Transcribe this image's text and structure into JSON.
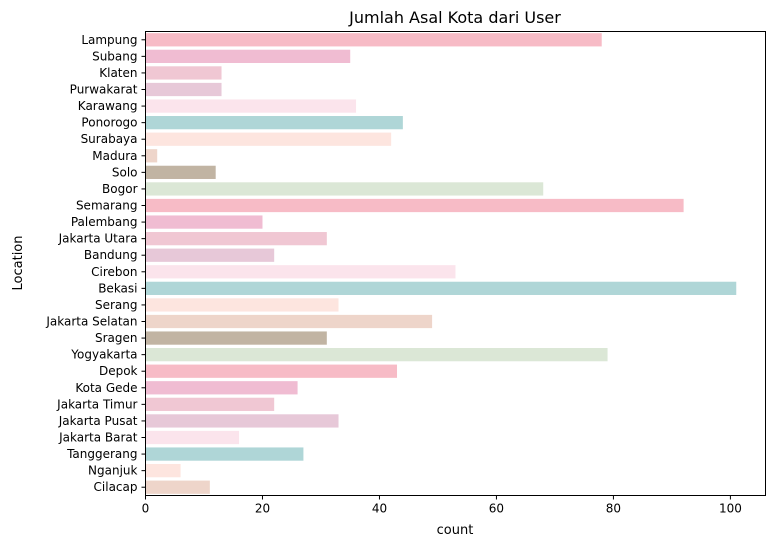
{
  "chart_data": {
    "type": "bar",
    "orientation": "horizontal",
    "title": "Jumlah Asal Kota dari User",
    "xlabel": "count",
    "ylabel": "Location",
    "xlim": [
      0,
      106
    ],
    "xticks": [
      0,
      20,
      40,
      60,
      80,
      100
    ],
    "grid": false,
    "palette": [
      "#f7bbc6",
      "#f0bcd2",
      "#f0c7d3",
      "#e7c8d8",
      "#fbe4ec",
      "#afd6d7",
      "#fde5df",
      "#eed5ca",
      "#c1b4a3",
      "#dbe7d6"
    ],
    "categories": [
      "Lampung",
      "Subang",
      "Klaten",
      "Purwakarat",
      "Karawang",
      "Ponorogo",
      "Surabaya",
      "Madura",
      "Solo",
      "Bogor",
      "Semarang",
      "Palembang",
      "Jakarta Utara",
      "Bandung",
      "Cirebon",
      "Bekasi",
      "Serang",
      "Jakarta Selatan",
      "Sragen",
      "Yogyakarta",
      "Depok",
      "Kota Gede",
      "Jakarta Timur",
      "Jakarta Pusat",
      "Jakarta Barat",
      "Tanggerang",
      "Nganjuk",
      "Cilacap"
    ],
    "values": [
      78,
      35,
      13,
      13,
      36,
      44,
      42,
      2,
      12,
      68,
      92,
      20,
      31,
      22,
      53,
      101,
      33,
      49,
      31,
      79,
      43,
      26,
      22,
      33,
      16,
      27,
      6,
      11
    ]
  }
}
